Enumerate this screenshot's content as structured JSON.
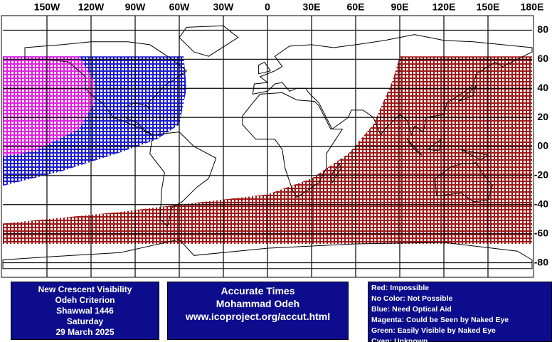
{
  "map": {
    "lon_labels": [
      "150W",
      "120W",
      "90W",
      "60W",
      "30W",
      "0",
      "30E",
      "60E",
      "90E",
      "120E",
      "150E",
      "180E"
    ],
    "lat_labels": [
      "80",
      "60",
      "40",
      "20",
      "00",
      "-20",
      "-40",
      "-60",
      "-80"
    ]
  },
  "info": {
    "lines": [
      "New Crescent Visibility",
      "Odeh Criterion",
      "Shawwal 1446",
      "Saturday",
      "29 March 2025"
    ]
  },
  "credit": {
    "lines": [
      "Accurate Times",
      "Mohammad Odeh",
      "www.icoproject.org/accut.html"
    ]
  },
  "legend": {
    "lines": [
      "Red: Impossible",
      "No Color: Not Possible",
      "Blue: Need Optical Aid",
      "Magenta: Could be Seen by Naked Eye",
      "Green: Easily Visible by Naked Eye",
      "Cyan: Unknown"
    ]
  }
}
